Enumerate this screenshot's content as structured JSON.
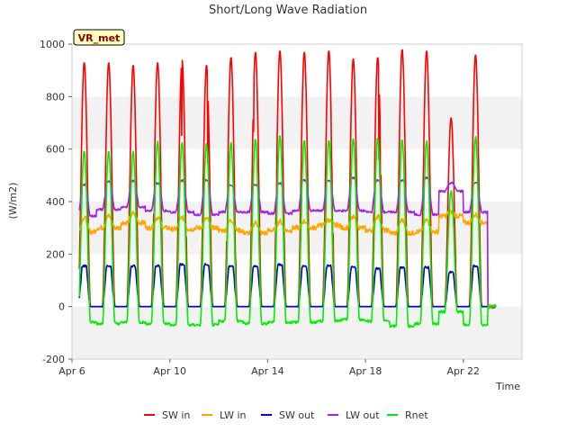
{
  "chart_data": {
    "type": "line",
    "title": "Short/Long Wave Radiation",
    "xlabel": "Time",
    "ylabel": "(W/m2)",
    "site_label": "VR_met",
    "xlim_days": [
      6.0,
      24.4
    ],
    "ylim": [
      -200,
      1000
    ],
    "yticks": [
      -200,
      0,
      200,
      400,
      600,
      800,
      1000
    ],
    "xticks": [
      {
        "label": "Apr 6",
        "day": 6
      },
      {
        "label": "Apr 10",
        "day": 10
      },
      {
        "label": "Apr 14",
        "day": 14
      },
      {
        "label": "Apr 18",
        "day": 18
      },
      {
        "label": "Apr 22",
        "day": 22
      }
    ],
    "grid": "alternating horizontal bands",
    "legend_position": "bottom",
    "colors": {
      "sw_in": "#ff0000",
      "lw_in": "#ffa500",
      "sw_out": "#0000cc",
      "lw_out": "#a020f0",
      "rnet": "#00ee00",
      "band": "#f2f2f2",
      "site_label_bg": "#ffffc0",
      "site_label_text": "#8b0000"
    },
    "days": [
      6,
      7,
      8,
      9,
      10,
      11,
      12,
      13,
      14,
      15,
      16,
      17,
      18,
      19,
      20,
      21,
      22,
      23,
      24
    ],
    "series": [
      {
        "key": "sw_in",
        "name": "SW in",
        "daily_peak": [
          930,
          930,
          920,
          930,
          940,
          920,
          950,
          970,
          975,
          970,
          975,
          945,
          950,
          980,
          975,
          720,
          960,
          0,
          0
        ]
      },
      {
        "key": "lw_in",
        "name": "LW in",
        "daily_night": [
          285,
          300,
          320,
          300,
          295,
          300,
          290,
          280,
          290,
          300,
          310,
          300,
          290,
          280,
          285,
          345,
          320,
          0,
          0
        ],
        "daily_day": [
          340,
          345,
          355,
          340,
          340,
          335,
          330,
          320,
          325,
          325,
          330,
          340,
          345,
          330,
          330,
          360,
          350,
          0,
          0
        ]
      },
      {
        "key": "sw_out",
        "name": "SW out",
        "daily_peak": [
          155,
          155,
          155,
          155,
          160,
          160,
          155,
          155,
          160,
          155,
          155,
          150,
          145,
          150,
          150,
          130,
          155,
          0,
          0
        ]
      },
      {
        "key": "lw_out",
        "name": "LW out",
        "daily_night": [
          345,
          370,
          380,
          365,
          360,
          350,
          360,
          360,
          355,
          365,
          365,
          365,
          360,
          360,
          350,
          440,
          360,
          0,
          0
        ],
        "daily_day": [
          465,
          475,
          478,
          470,
          480,
          480,
          460,
          465,
          470,
          480,
          480,
          490,
          480,
          480,
          490,
          470,
          470,
          0,
          0
        ]
      },
      {
        "key": "rnet",
        "name": "Rnet",
        "daily_peak": [
          595,
          590,
          590,
          630,
          625,
          620,
          625,
          640,
          650,
          635,
          635,
          640,
          640,
          635,
          630,
          440,
          645,
          0,
          0
        ],
        "daily_night": [
          -60,
          -65,
          -60,
          -65,
          -70,
          -70,
          -55,
          -65,
          -60,
          -60,
          -55,
          -50,
          -55,
          -75,
          -65,
          -20,
          -70,
          0,
          0
        ]
      }
    ]
  }
}
